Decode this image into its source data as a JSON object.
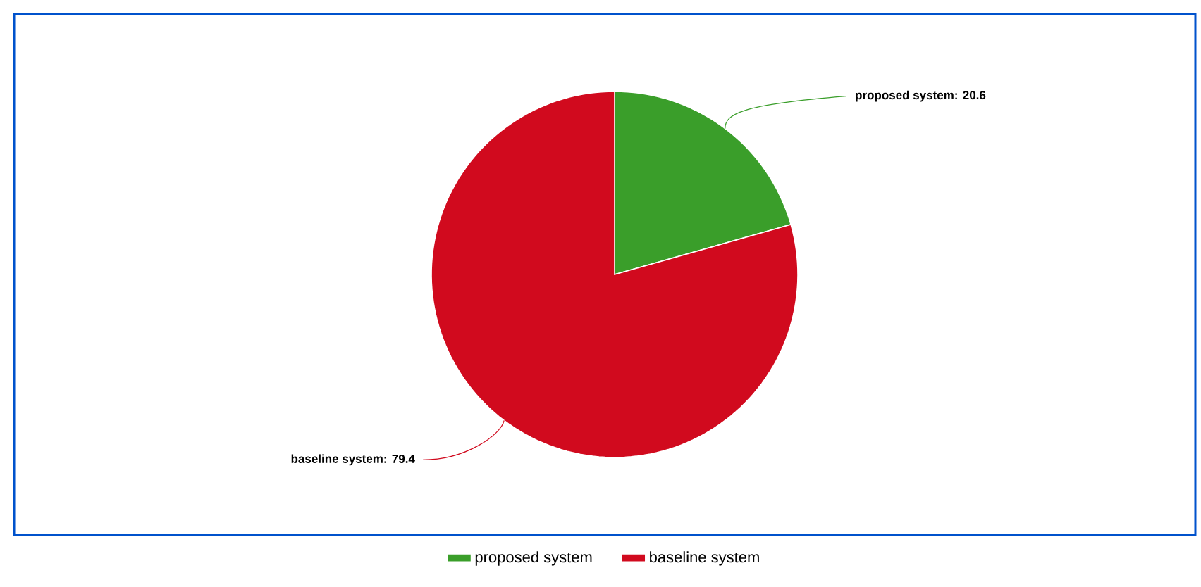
{
  "chart_data": {
    "type": "pie",
    "categories": [
      "proposed system",
      "baseline system"
    ],
    "values": [
      20.6,
      79.4
    ],
    "colors": [
      "#3a9e2a",
      "#d10a1e"
    ],
    "value_labels": [
      "proposed system: 20.6",
      "baseline system: 79.4"
    ],
    "legend": "bottom"
  }
}
